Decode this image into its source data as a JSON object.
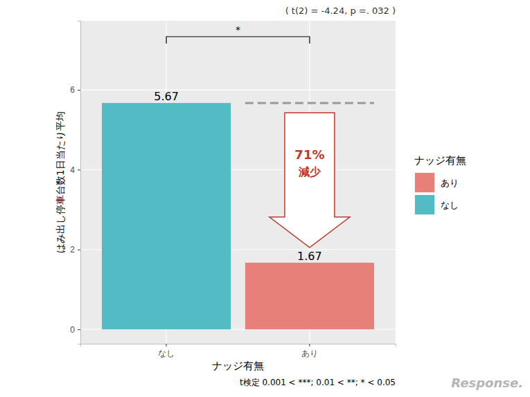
{
  "chart_data": {
    "type": "bar",
    "x_label": "ナッジ有無",
    "y_label": "はみ出し停車台数1日当たり平均",
    "categories": [
      "なし",
      "あり"
    ],
    "values": [
      5.67,
      1.67
    ],
    "colors": [
      "#53BBC3",
      "#E8807A"
    ],
    "ylim": [
      -0.36,
      7.73
    ],
    "yticks": [
      0,
      2,
      4,
      6
    ],
    "grid": true,
    "data_labels": true,
    "legend": "right",
    "legend_title": "ナッジ有無",
    "legend_order": [
      "あり",
      "なし"
    ],
    "annotations": [
      "( t(2) = -4.24, p =. 032 )",
      "*",
      "71%",
      "減少",
      "t検定 0.001 < ***; 0.01 < **; * < 0.05",
      "Response."
    ]
  }
}
